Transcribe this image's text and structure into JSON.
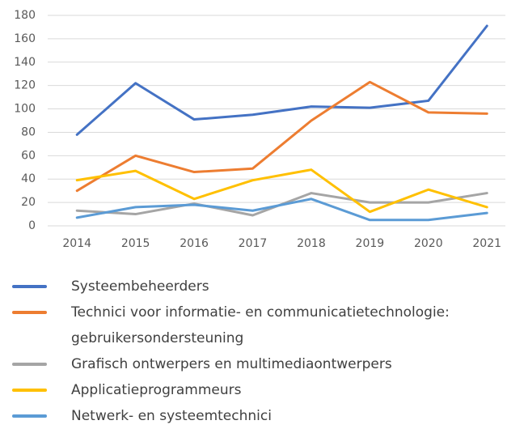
{
  "chart_data": {
    "type": "line",
    "categories": [
      "2014",
      "2015",
      "2016",
      "2017",
      "2018",
      "2019",
      "2020",
      "2021"
    ],
    "series": [
      {
        "name": "Systeembeheerders",
        "color": "#4472c4",
        "values": [
          78,
          122,
          91,
          95,
          102,
          101,
          107,
          171
        ]
      },
      {
        "name": "Technici voor informatie- en communicatietechnologie: gebruikersondersteuning",
        "color": "#ed7d31",
        "values": [
          30,
          60,
          46,
          49,
          90,
          123,
          97,
          96
        ]
      },
      {
        "name": "Grafisch ontwerpers en multimediaontwerpers",
        "color": "#a5a5a5",
        "values": [
          13,
          10,
          19,
          9,
          28,
          20,
          20,
          28
        ]
      },
      {
        "name": "Applicatieprogrammeurs",
        "color": "#ffc000",
        "values": [
          39,
          47,
          23,
          39,
          48,
          12,
          31,
          16
        ]
      },
      {
        "name": "Netwerk- en systeemtechnici",
        "color": "#5b9bd5",
        "values": [
          7,
          16,
          18,
          13,
          23,
          5,
          5,
          11
        ]
      }
    ],
    "ylim": [
      0,
      180
    ],
    "yticks": [
      0,
      20,
      40,
      60,
      80,
      100,
      120,
      140,
      160,
      180
    ],
    "grid": true,
    "legend": "bottom"
  }
}
